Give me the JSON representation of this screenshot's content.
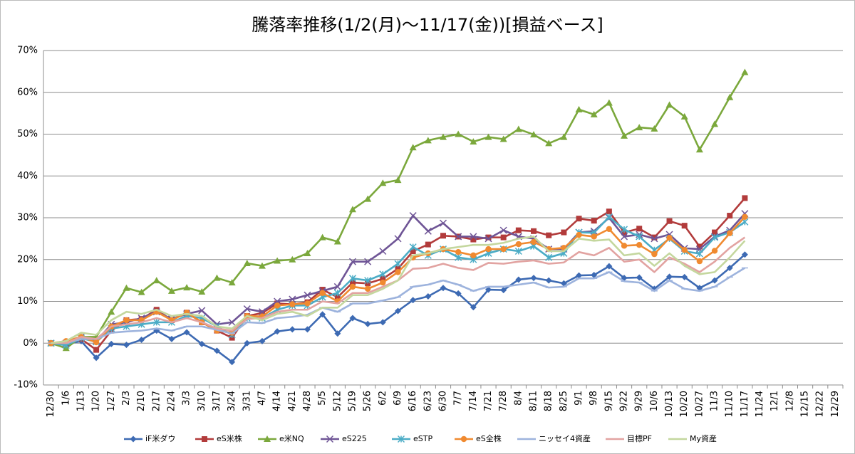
{
  "chart_data": {
    "type": "line",
    "title": "騰落率推移(1/2(月)～11/17(金))[損益ベース]",
    "categories": [
      "12/30",
      "1/6",
      "1/13",
      "1/20",
      "1/27",
      "2/3",
      "2/10",
      "2/17",
      "2/24",
      "3/3",
      "3/10",
      "3/17",
      "3/24",
      "3/31",
      "4/7",
      "4/14",
      "4/21",
      "4/28",
      "5/5",
      "5/12",
      "5/19",
      "5/26",
      "6/2",
      "6/9",
      "6/16",
      "6/23",
      "6/30",
      "7/7",
      "7/14",
      "7/21",
      "7/28",
      "8/4",
      "8/11",
      "8/18",
      "8/25",
      "9/1",
      "9/8",
      "9/15",
      "9/22",
      "9/29",
      "10/6",
      "10/13",
      "10/20",
      "10/27",
      "11/3",
      "11/10",
      "11/17",
      "11/24",
      "12/1",
      "12/8",
      "12/15",
      "12/22",
      "12/29"
    ],
    "ylim": [
      -10,
      70
    ],
    "yticks": [
      {
        "value": -10,
        "label": "-10%"
      },
      {
        "value": 0,
        "label": "0%"
      },
      {
        "value": 10,
        "label": "10%"
      },
      {
        "value": 20,
        "label": "20%"
      },
      {
        "value": 30,
        "label": "30%"
      },
      {
        "value": 40,
        "label": "40%"
      },
      {
        "value": 50,
        "label": "50%"
      },
      {
        "value": 60,
        "label": "60%"
      },
      {
        "value": 70,
        "label": "70%"
      }
    ],
    "grid": true,
    "legend": "bottom",
    "series": [
      {
        "name": "iF米ダウ",
        "color": "#3D6AB3",
        "marker": "diamond",
        "values": [
          0,
          -0.2,
          0.5,
          -3.5,
          -0.2,
          -0.4,
          0.8,
          3,
          1,
          2.6,
          -0.2,
          -1.8,
          -4.5,
          0,
          0.5,
          2.8,
          3.3,
          3.3,
          6.9,
          2.3,
          6,
          4.6,
          5,
          7.7,
          10.3,
          11.2,
          13.2,
          11.9,
          8.6,
          12.8,
          12.7,
          15.2,
          15.6,
          15,
          14.3,
          16.2,
          16.3,
          18.4,
          15.6,
          15.7,
          13,
          15.9,
          15.8,
          13.2,
          15,
          18,
          21.2,
          null,
          null,
          null,
          null,
          null,
          null
        ]
      },
      {
        "name": "eS米株",
        "color": "#B23B3B",
        "marker": "square",
        "values": [
          0,
          0,
          1,
          -1.6,
          3,
          5.5,
          5.8,
          8,
          5.5,
          7.3,
          5,
          3,
          1.3,
          6.5,
          7.2,
          9.5,
          9.3,
          9.8,
          12.8,
          11,
          14.5,
          14.3,
          15.4,
          17.8,
          22,
          23.6,
          25.7,
          25.5,
          24.8,
          25.3,
          25.3,
          27,
          26.8,
          25.8,
          26.5,
          29.8,
          29.3,
          31.5,
          26.5,
          27.4,
          25.3,
          29.2,
          28.1,
          23.1,
          26.5,
          30.5,
          34.7,
          null,
          null,
          null,
          null,
          null,
          null
        ]
      },
      {
        "name": "e米NQ",
        "color": "#7BA83C",
        "marker": "triangle",
        "values": [
          0,
          -1.2,
          1.5,
          1.5,
          7.5,
          13.2,
          12.2,
          15,
          12.5,
          13.3,
          12.3,
          15.6,
          14.5,
          19.1,
          18.5,
          19.7,
          20,
          21.5,
          25.3,
          24.3,
          32,
          34.5,
          38.3,
          39,
          46.8,
          48.5,
          49.3,
          50,
          48.2,
          49.3,
          48.8,
          51.2,
          49.9,
          47.8,
          49.3,
          55.9,
          54.7,
          57.5,
          49.6,
          51.6,
          51.3,
          57,
          54.2,
          46.3,
          52.4,
          58.8,
          64.8,
          null,
          null,
          null,
          null,
          null,
          null
        ]
      },
      {
        "name": "eS225",
        "color": "#6F5596",
        "marker": "x",
        "values": [
          0,
          0,
          1.5,
          0.5,
          4.5,
          5,
          6,
          7.5,
          5.8,
          7,
          7.8,
          4.5,
          5,
          8.2,
          7.5,
          10,
          10.5,
          11.5,
          12.5,
          13.5,
          19.5,
          19.5,
          22,
          25,
          30.5,
          26.8,
          28.7,
          25.5,
          25.5,
          25,
          27,
          25.5,
          25,
          22.5,
          22.5,
          26.5,
          26.8,
          30,
          25.5,
          26,
          25,
          26,
          22.7,
          22.5,
          25.5,
          27,
          31,
          null,
          null,
          null,
          null,
          null,
          null
        ]
      },
      {
        "name": "eSTP",
        "color": "#4BACC6",
        "marker": "star",
        "values": [
          0,
          -0.5,
          1.2,
          0.3,
          3.5,
          4,
          4.5,
          5,
          5,
          6.5,
          6,
          4,
          2,
          6,
          6,
          8,
          9,
          9,
          11,
          12,
          15.5,
          15,
          16.5,
          19,
          23,
          21,
          22.5,
          20.5,
          20,
          21.5,
          22.5,
          22,
          23.2,
          20.5,
          21.5,
          26.5,
          26.4,
          30.2,
          27.2,
          25.5,
          22.3,
          25,
          22,
          21.4,
          25.3,
          26.5,
          29,
          null,
          null,
          null,
          null,
          null,
          null
        ]
      },
      {
        "name": "eS全株",
        "color": "#F08A30",
        "marker": "circle",
        "values": [
          0,
          0.5,
          1.5,
          0.2,
          4,
          5.5,
          5.5,
          7.5,
          5.5,
          7.3,
          5,
          3,
          2.5,
          6.5,
          6.4,
          9,
          9.3,
          9.5,
          12,
          10,
          13.5,
          13,
          14.5,
          17,
          20.5,
          21.5,
          22.5,
          21.8,
          21,
          22.5,
          22.5,
          23.7,
          24.2,
          22.5,
          22.8,
          25.9,
          25.5,
          27.3,
          23.3,
          23.5,
          21.3,
          25.2,
          22.3,
          19.6,
          22.1,
          26.3,
          30.2,
          null,
          null,
          null,
          null,
          null,
          null
        ]
      },
      {
        "name": "ニッセイ4資産",
        "color": "#9DB3DD",
        "marker": "plus",
        "values": [
          0,
          0,
          1,
          1,
          2.5,
          2.8,
          3,
          3.5,
          3,
          4,
          4,
          3.2,
          2.3,
          5,
          4.8,
          6,
          6.3,
          6.8,
          8.5,
          7.5,
          9.5,
          9.5,
          10.2,
          11,
          13.5,
          14,
          15,
          14,
          12.5,
          13.5,
          13.5,
          14,
          14.5,
          13.3,
          13.5,
          15.5,
          15.5,
          17,
          14.8,
          14.5,
          12.5,
          15,
          13,
          12.5,
          13.5,
          15.8,
          18,
          null,
          null,
          null,
          null,
          null,
          null
        ]
      },
      {
        "name": "目標PF",
        "color": "#E2A3A1",
        "marker": "none",
        "values": [
          0,
          0,
          1.5,
          1,
          4,
          4.5,
          5,
          6,
          5,
          6,
          5,
          3.5,
          3,
          5.8,
          6,
          7.5,
          8,
          8,
          10,
          9.5,
          12,
          12,
          13.5,
          15,
          17.8,
          18,
          19,
          18,
          17.5,
          19.2,
          19,
          19.5,
          19.8,
          19,
          19.3,
          21.8,
          21,
          22.8,
          19.5,
          20,
          17,
          20.5,
          19,
          17,
          19.5,
          22.8,
          25.3,
          null,
          null,
          null,
          null,
          null,
          null
        ]
      },
      {
        "name": "My資産",
        "color": "#C4D79E",
        "marker": "none",
        "values": [
          0,
          0.5,
          2.5,
          2,
          5.5,
          7.5,
          7,
          8,
          6.5,
          7,
          6.5,
          4,
          3.5,
          6.5,
          5.5,
          7,
          7.5,
          6.5,
          8.5,
          8.5,
          11.5,
          11.5,
          13,
          15,
          21,
          21.5,
          22.5,
          23,
          23.5,
          23.5,
          24,
          25,
          25.5,
          22,
          22,
          25,
          24.5,
          24.8,
          21,
          21.5,
          18.5,
          21.5,
          18.5,
          16.5,
          17,
          20.5,
          24.5,
          null,
          null,
          null,
          null,
          null,
          null
        ]
      }
    ]
  }
}
